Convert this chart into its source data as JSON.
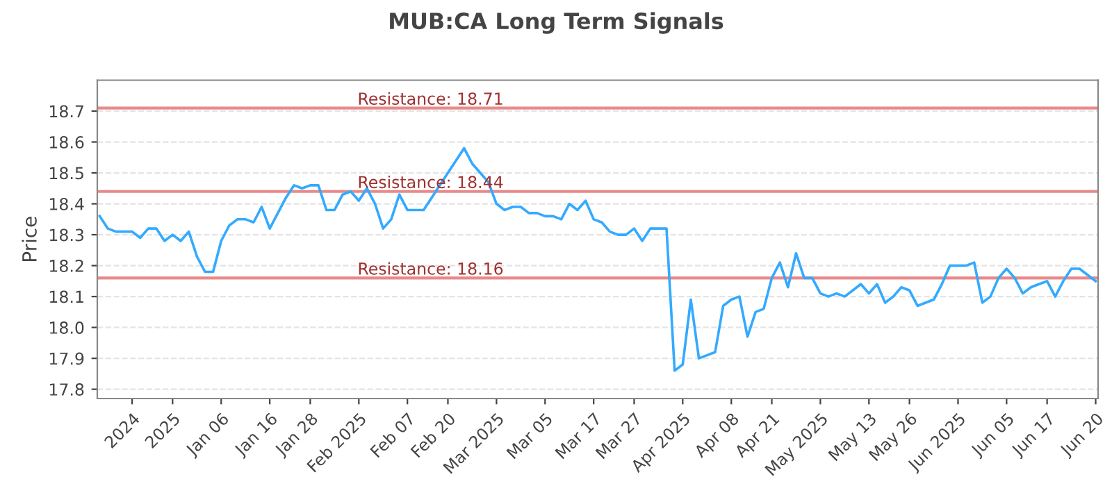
{
  "chart_data": {
    "type": "line",
    "title": "MUB:CA Long Term Signals",
    "ylabel": "Price",
    "categories": [
      null,
      null,
      null,
      null,
      "2024",
      null,
      null,
      null,
      null,
      "2025",
      null,
      null,
      null,
      null,
      null,
      "Jan 06",
      null,
      null,
      null,
      null,
      null,
      "Jan 16",
      null,
      null,
      null,
      null,
      "Jan 28",
      null,
      null,
      null,
      null,
      null,
      "Feb 2025",
      null,
      null,
      null,
      null,
      null,
      "Feb 07",
      null,
      null,
      null,
      null,
      "Feb 20",
      null,
      null,
      null,
      null,
      null,
      "Mar 2025",
      null,
      null,
      null,
      null,
      null,
      "Mar 05",
      null,
      null,
      null,
      null,
      null,
      "Mar 17",
      null,
      null,
      null,
      null,
      "Mar 27",
      null,
      null,
      null,
      null,
      null,
      "Apr 2025",
      null,
      null,
      null,
      null,
      null,
      "Apr 08",
      null,
      null,
      null,
      null,
      "Apr 21",
      null,
      null,
      null,
      null,
      null,
      "May 2025",
      null,
      null,
      null,
      null,
      null,
      "May 13",
      null,
      null,
      null,
      null,
      "May 26",
      null,
      null,
      null,
      null,
      null,
      "Jun 2025",
      null,
      null,
      null,
      null,
      null,
      "Jun 05",
      null,
      null,
      null,
      null,
      "Jun 17",
      null,
      null,
      null,
      null,
      null,
      "Jun 20"
    ],
    "series": [
      {
        "color": "#33aaff",
        "values": [
          18.36,
          18.32,
          18.31,
          18.31,
          18.31,
          18.29,
          18.32,
          18.32,
          18.28,
          18.3,
          18.28,
          18.31,
          18.23,
          18.18,
          18.18,
          18.28,
          18.33,
          18.35,
          18.35,
          18.34,
          18.39,
          18.32,
          18.37,
          18.42,
          18.46,
          18.45,
          18.46,
          18.46,
          18.38,
          18.38,
          18.43,
          18.44,
          18.41,
          18.45,
          18.4,
          18.32,
          18.35,
          18.43,
          18.38,
          18.38,
          18.38,
          18.42,
          18.46,
          18.5,
          18.54,
          18.58,
          18.53,
          18.5,
          18.47,
          18.4,
          18.38,
          18.39,
          18.39,
          18.37,
          18.37,
          18.36,
          18.36,
          18.35,
          18.4,
          18.38,
          18.41,
          18.35,
          18.34,
          18.31,
          18.3,
          18.3,
          18.32,
          18.28,
          18.32,
          18.32,
          18.32,
          17.86,
          17.88,
          18.09,
          17.9,
          17.91,
          17.92,
          18.07,
          18.09,
          18.1,
          17.97,
          18.05,
          18.06,
          18.16,
          18.21,
          18.13,
          18.24,
          18.16,
          18.16,
          18.11,
          18.1,
          18.11,
          18.1,
          18.12,
          18.14,
          18.11,
          18.14,
          18.08,
          18.1,
          18.13,
          18.12,
          18.07,
          18.08,
          18.09,
          18.14,
          18.2,
          18.2,
          18.2,
          18.21,
          18.08,
          18.1,
          18.16,
          18.19,
          18.16,
          18.11,
          18.13,
          18.14,
          18.15,
          18.1,
          18.15,
          18.19,
          18.19,
          18.17,
          18.15
        ]
      }
    ],
    "ylim": [
      17.77,
      18.8
    ],
    "yticks": [
      17.8,
      17.9,
      {
        "value": 18,
        "label": "18.0"
      },
      18.1,
      18.2,
      18.3,
      18.4,
      18.5,
      18.6,
      18.7
    ],
    "ref_lines": [
      {
        "axis": "y",
        "value": 18.71,
        "label": "Resistance: 18.71",
        "color": "#e88a8a"
      },
      {
        "axis": "y",
        "value": 18.44,
        "label": "Resistance: 18.44",
        "color": "#e88a8a"
      },
      {
        "axis": "y",
        "value": 18.16,
        "label": "Resistance: 18.16",
        "color": "#e88a8a"
      }
    ],
    "grid": "y",
    "marker": "none",
    "line_style": "solid"
  }
}
